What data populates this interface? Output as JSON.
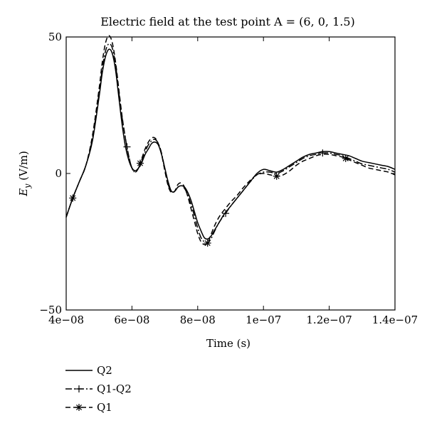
{
  "chart_data": {
    "type": "line",
    "title": "Electric field at the test point A = (6, 0, 1.5)",
    "xlabel": "Time (s)",
    "ylabel_main": "E",
    "ylabel_sub": "y",
    "ylabel_unit": " (V/m)",
    "xlim": [
      4e-08,
      1.4e-07
    ],
    "ylim": [
      -50,
      50
    ],
    "xticks": [
      4e-08,
      6e-08,
      8e-08,
      1e-07,
      1.2e-07,
      1.4e-07
    ],
    "xtick_labels": [
      "4e−08",
      "6e−08",
      "8e−08",
      "1e−07",
      "1.2e−07",
      "1.4e−07"
    ],
    "yticks": [
      -50,
      0,
      50
    ],
    "ytick_labels": [
      "−50",
      "0",
      "50"
    ],
    "grid": false,
    "legend_position": "bottom-left, below plot",
    "series": [
      {
        "name": "Q2",
        "style": "solid",
        "marker": "none",
        "x": [
          4e-08,
          4.2e-08,
          4.4e-08,
          4.6e-08,
          4.8e-08,
          5e-08,
          5.1e-08,
          5.2e-08,
          5.3e-08,
          5.4e-08,
          5.5e-08,
          5.6e-08,
          5.7e-08,
          5.8e-08,
          5.9e-08,
          6e-08,
          6.1e-08,
          6.2e-08,
          6.3e-08,
          6.4e-08,
          6.5e-08,
          6.6e-08,
          6.7e-08,
          6.8e-08,
          6.9e-08,
          7e-08,
          7.1e-08,
          7.2e-08,
          7.3e-08,
          7.4e-08,
          7.5e-08,
          7.6e-08,
          7.7e-08,
          7.8e-08,
          7.9e-08,
          8e-08,
          8.1e-08,
          8.2e-08,
          8.3e-08,
          8.4e-08,
          8.5e-08,
          8.6e-08,
          8.7e-08,
          8.8e-08,
          9e-08,
          9.2e-08,
          9.4e-08,
          9.6e-08,
          9.8e-08,
          1e-07,
          1.02e-07,
          1.04e-07,
          1.06e-07,
          1.08e-07,
          1.1e-07,
          1.12e-07,
          1.14e-07,
          1.16e-07,
          1.18e-07,
          1.2e-07,
          1.22e-07,
          1.24e-07,
          1.26e-07,
          1.28e-07,
          1.3e-07,
          1.32e-07,
          1.34e-07,
          1.36e-07,
          1.38e-07,
          1.4e-07
        ],
        "y": [
          -16,
          -9,
          -3,
          3,
          12,
          28,
          37,
          43,
          45.5,
          44,
          38,
          28,
          18,
          10,
          5,
          2,
          1,
          2,
          4,
          7,
          9,
          11,
          11.5,
          10.5,
          7,
          2,
          -3,
          -6.5,
          -6.5,
          -5,
          -4.5,
          -5,
          -7,
          -10,
          -14,
          -18,
          -21,
          -23.5,
          -24,
          -23,
          -21,
          -19,
          -17,
          -15,
          -12,
          -9,
          -6,
          -3,
          0,
          1.5,
          1,
          0.5,
          1.5,
          3,
          4.5,
          6,
          7,
          7.5,
          8,
          8,
          7.5,
          7,
          6.5,
          5.5,
          4.5,
          4,
          3.5,
          3,
          2.5,
          1.5
        ]
      },
      {
        "name": "Q1-Q2",
        "style": "dashdot",
        "marker": "plus",
        "x": [
          4e-08,
          4.2e-08,
          4.4e-08,
          4.6e-08,
          4.8e-08,
          5e-08,
          5.1e-08,
          5.2e-08,
          5.3e-08,
          5.4e-08,
          5.5e-08,
          5.6e-08,
          5.7e-08,
          5.8e-08,
          5.9e-08,
          6e-08,
          6.1e-08,
          6.2e-08,
          6.3e-08,
          6.4e-08,
          6.5e-08,
          6.6e-08,
          6.7e-08,
          6.8e-08,
          6.9e-08,
          7e-08,
          7.1e-08,
          7.2e-08,
          7.3e-08,
          7.4e-08,
          7.5e-08,
          7.6e-08,
          7.7e-08,
          7.8e-08,
          7.9e-08,
          8e-08,
          8.1e-08,
          8.2e-08,
          8.3e-08,
          8.4e-08,
          8.5e-08,
          8.6e-08,
          8.7e-08,
          8.8e-08,
          9e-08,
          9.2e-08,
          9.4e-08,
          9.6e-08,
          9.8e-08,
          1e-07,
          1.02e-07,
          1.04e-07,
          1.06e-07,
          1.08e-07,
          1.1e-07,
          1.12e-07,
          1.14e-07,
          1.16e-07,
          1.18e-07,
          1.2e-07,
          1.22e-07,
          1.24e-07,
          1.26e-07,
          1.28e-07,
          1.3e-07,
          1.32e-07,
          1.34e-07,
          1.36e-07,
          1.38e-07,
          1.4e-07
        ],
        "y": [
          -16,
          -9,
          -3,
          3,
          13,
          29.5,
          38.5,
          45,
          47.5,
          46,
          40,
          30,
          20.5,
          13,
          6.5,
          2,
          0.5,
          2,
          5,
          8,
          10.5,
          12,
          12.5,
          11,
          7.5,
          1.5,
          -4,
          -6.5,
          -6.5,
          -5,
          -4.5,
          -5.5,
          -8,
          -11.5,
          -15.5,
          -20,
          -23.5,
          -25,
          -25.5,
          -24,
          -21.5,
          -19,
          -17,
          -15.5,
          -12,
          -9,
          -6,
          -3,
          -0.5,
          0.5,
          0.5,
          0,
          1,
          2.5,
          4,
          5.5,
          6.5,
          7,
          7.5,
          7.5,
          7,
          6.5,
          5.5,
          4.5,
          3.5,
          3,
          2.5,
          2,
          1.5,
          0.5
        ],
        "marker_x": [
          5.85e-08,
          8.85e-08,
          1.18e-07
        ]
      },
      {
        "name": "Q1",
        "style": "dashed",
        "marker": "asterisk",
        "x": [
          4e-08,
          4.2e-08,
          4.4e-08,
          4.6e-08,
          4.8e-08,
          5e-08,
          5.1e-08,
          5.2e-08,
          5.3e-08,
          5.4e-08,
          5.5e-08,
          5.6e-08,
          5.7e-08,
          5.8e-08,
          5.9e-08,
          6e-08,
          6.1e-08,
          6.2e-08,
          6.3e-08,
          6.4e-08,
          6.5e-08,
          6.6e-08,
          6.7e-08,
          6.8e-08,
          6.9e-08,
          7e-08,
          7.1e-08,
          7.2e-08,
          7.3e-08,
          7.4e-08,
          7.5e-08,
          7.6e-08,
          7.7e-08,
          7.8e-08,
          7.9e-08,
          8e-08,
          8.1e-08,
          8.2e-08,
          8.3e-08,
          8.4e-08,
          8.5e-08,
          8.6e-08,
          8.7e-08,
          8.8e-08,
          9e-08,
          9.2e-08,
          9.4e-08,
          9.6e-08,
          9.8e-08,
          1e-07,
          1.02e-07,
          1.04e-07,
          1.06e-07,
          1.08e-07,
          1.1e-07,
          1.12e-07,
          1.14e-07,
          1.16e-07,
          1.18e-07,
          1.2e-07,
          1.22e-07,
          1.24e-07,
          1.26e-07,
          1.28e-07,
          1.3e-07,
          1.32e-07,
          1.34e-07,
          1.36e-07,
          1.38e-07,
          1.4e-07
        ],
        "y": [
          -16,
          -9,
          -3,
          3,
          14,
          31,
          41,
          48,
          50.5,
          48,
          41,
          31,
          21,
          13,
          6.5,
          2,
          0.5,
          2,
          5.5,
          9,
          11.5,
          13,
          13,
          11,
          7,
          1,
          -4.5,
          -7,
          -6.5,
          -4,
          -3.5,
          -5,
          -8.5,
          -13,
          -17.5,
          -22,
          -25,
          -26,
          -25.5,
          -22.5,
          -19.5,
          -17,
          -15,
          -13.5,
          -10.5,
          -8,
          -5,
          -2.5,
          -0.5,
          0,
          -0.5,
          -1,
          -0.5,
          1,
          3,
          4.5,
          5.5,
          6.5,
          7,
          7,
          6.5,
          6,
          5,
          4,
          3,
          2,
          1.5,
          1,
          0.5,
          -0.5
        ],
        "marker_x": [
          4.2e-08,
          6.25e-08,
          8.3e-08,
          1.04e-07,
          1.25e-07
        ]
      }
    ]
  }
}
